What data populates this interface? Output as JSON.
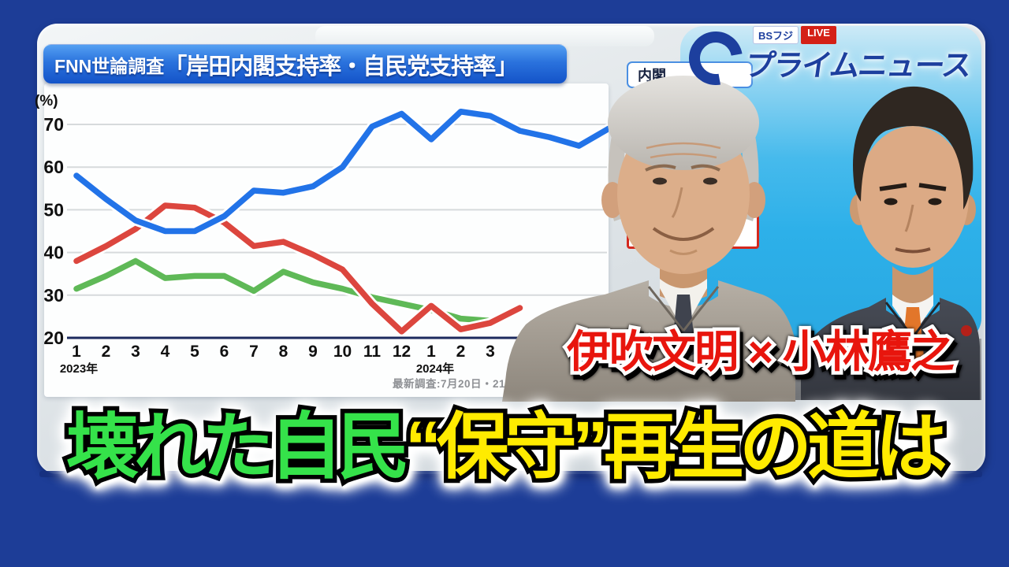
{
  "program": {
    "channel_badge": "BSフジ",
    "live_badge": "LIVE",
    "title": "プライムニュース"
  },
  "chart": {
    "banner_prefix": "FNN世論調査",
    "banner_title": "「岸田内閣支持率・自民党支持率」",
    "unit": "(%)",
    "legend_visible_text": "内閣",
    "caption_visible_text": "）",
    "footnote": "最新調査:7月20日・21日 RD",
    "year_labels": {
      "start": "2023年",
      "mid": "2024年"
    }
  },
  "chart_data": {
    "type": "line",
    "title": "FNN世論調査「岸田内閣支持率・自民党支持率」",
    "categories": [
      "2023-01",
      "2023-02",
      "2023-03",
      "2023-04",
      "2023-05",
      "2023-06",
      "2023-07",
      "2023-08",
      "2023-09",
      "2023-10",
      "2023-11",
      "2023-12",
      "2024-01",
      "2024-02",
      "2024-03",
      "2024-04",
      "2024-05",
      "2024-06",
      "2024-07"
    ],
    "x_tick_labels": [
      "1",
      "2",
      "3",
      "4",
      "5",
      "6",
      "7",
      "8",
      "9",
      "10",
      "11",
      "12",
      "1",
      "2",
      "3"
    ],
    "ylim": [
      20,
      75
    ],
    "y_ticks": [
      70,
      60,
      50,
      40,
      30,
      20
    ],
    "grid": "horizontal",
    "legend_position": "top-right (partially hidden)",
    "series": [
      {
        "name": "blue-line",
        "color": "#2273e8",
        "values": [
          58,
          52.5,
          47.5,
          45,
          45,
          48.5,
          54.5,
          54,
          55.5,
          60,
          69.5,
          72.5,
          66.5,
          73,
          72,
          68.5,
          67,
          65,
          69
        ]
      },
      {
        "name": "red-line",
        "color": "#dc463e",
        "values": [
          38,
          41.5,
          45.5,
          51,
          50.5,
          47,
          41.5,
          42.5,
          39.5,
          36,
          28,
          21.5,
          27.5,
          22,
          23.5,
          27
        ]
      },
      {
        "name": "green-line",
        "color": "#5fb957",
        "values": [
          31.5,
          34.5,
          38,
          34,
          34.5,
          34.5,
          31,
          35.5,
          33,
          31.5,
          29.5,
          28,
          26.5,
          24.5,
          24
        ]
      }
    ]
  },
  "guests": {
    "names": "伊吹文明 × 小林鷹之"
  },
  "headline": {
    "green_part": "壊れた自民",
    "yellow_part": "“保守”再生の道は",
    "green_color": "#35e24a",
    "yellow_color": "#ffeb00",
    "names_color": "#e8150d"
  }
}
